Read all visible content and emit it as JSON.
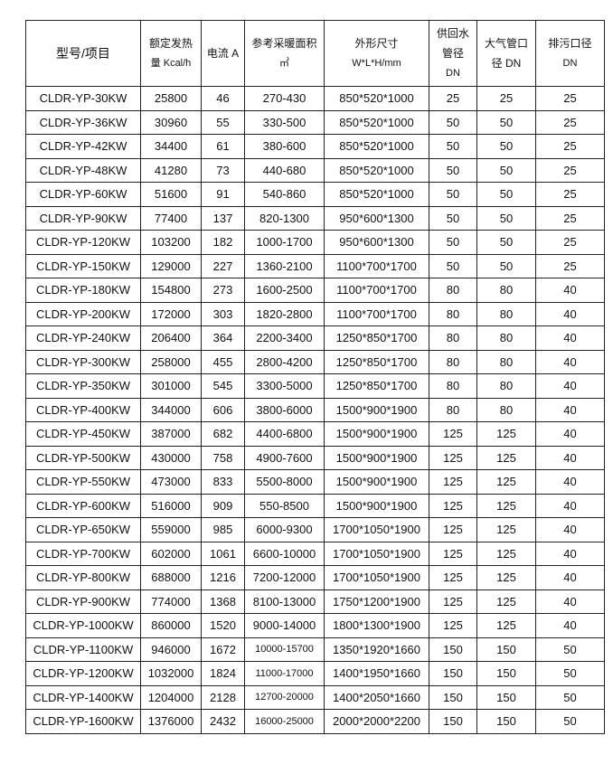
{
  "headers": [
    {
      "line1": "型号/项目",
      "line2": "",
      "line3": ""
    },
    {
      "line1": "额定发热",
      "line2": "量 Kcal/h",
      "line3": ""
    },
    {
      "line1": "电流 A",
      "line2": "",
      "line3": ""
    },
    {
      "line1": "参考采暖面积",
      "line2": "㎡",
      "line3": ""
    },
    {
      "line1": "外形尺寸",
      "line2": "W*L*H/mm",
      "line3": ""
    },
    {
      "line1": "供回水",
      "line2": "管径",
      "line3": "DN"
    },
    {
      "line1": "大气管口",
      "line2": "径 DN",
      "line3": ""
    },
    {
      "line1": "排污口径",
      "line2": "DN",
      "line3": ""
    }
  ],
  "rows": [
    [
      "CLDR-YP-30KW",
      "25800",
      "46",
      "270-430",
      "850*520*1000",
      "25",
      "25",
      "25"
    ],
    [
      "CLDR-YP-36KW",
      "30960",
      "55",
      "330-500",
      "850*520*1000",
      "50",
      "50",
      "25"
    ],
    [
      "CLDR-YP-42KW",
      "34400",
      "61",
      "380-600",
      "850*520*1000",
      "50",
      "50",
      "25"
    ],
    [
      "CLDR-YP-48KW",
      "41280",
      "73",
      "440-680",
      "850*520*1000",
      "50",
      "50",
      "25"
    ],
    [
      "CLDR-YP-60KW",
      "51600",
      "91",
      "540-860",
      "850*520*1000",
      "50",
      "50",
      "25"
    ],
    [
      "CLDR-YP-90KW",
      "77400",
      "137",
      "820-1300",
      "950*600*1300",
      "50",
      "50",
      "25"
    ],
    [
      "CLDR-YP-120KW",
      "103200",
      "182",
      "1000-1700",
      "950*600*1300",
      "50",
      "50",
      "25"
    ],
    [
      "CLDR-YP-150KW",
      "129000",
      "227",
      "1360-2100",
      "1100*700*1700",
      "50",
      "50",
      "25"
    ],
    [
      "CLDR-YP-180KW",
      "154800",
      "273",
      "1600-2500",
      "1100*700*1700",
      "80",
      "80",
      "40"
    ],
    [
      "CLDR-YP-200KW",
      "172000",
      "303",
      "1820-2800",
      "1100*700*1700",
      "80",
      "80",
      "40"
    ],
    [
      "CLDR-YP-240KW",
      "206400",
      "364",
      "2200-3400",
      "1250*850*1700",
      "80",
      "80",
      "40"
    ],
    [
      "CLDR-YP-300KW",
      "258000",
      "455",
      "2800-4200",
      "1250*850*1700",
      "80",
      "80",
      "40"
    ],
    [
      "CLDR-YP-350KW",
      "301000",
      "545",
      "3300-5000",
      "1250*850*1700",
      "80",
      "80",
      "40"
    ],
    [
      "CLDR-YP-400KW",
      "344000",
      "606",
      "3800-6000",
      "1500*900*1900",
      "80",
      "80",
      "40"
    ],
    [
      "CLDR-YP-450KW",
      "387000",
      "682",
      "4400-6800",
      "1500*900*1900",
      "125",
      "125",
      "40"
    ],
    [
      "CLDR-YP-500KW",
      "430000",
      "758",
      "4900-7600",
      "1500*900*1900",
      "125",
      "125",
      "40"
    ],
    [
      "CLDR-YP-550KW",
      "473000",
      "833",
      "5500-8000",
      "1500*900*1900",
      "125",
      "125",
      "40"
    ],
    [
      "CLDR-YP-600KW",
      "516000",
      "909",
      "550-8500",
      "1500*900*1900",
      "125",
      "125",
      "40"
    ],
    [
      "CLDR-YP-650KW",
      "559000",
      "985",
      "6000-9300",
      "1700*1050*1900",
      "125",
      "125",
      "40"
    ],
    [
      "CLDR-YP-700KW",
      "602000",
      "1061",
      "6600-10000",
      "1700*1050*1900",
      "125",
      "125",
      "40"
    ],
    [
      "CLDR-YP-800KW",
      "688000",
      "1216",
      "7200-12000",
      "1700*1050*1900",
      "125",
      "125",
      "40"
    ],
    [
      "CLDR-YP-900KW",
      "774000",
      "1368",
      "8100-13000",
      "1750*1200*1900",
      "125",
      "125",
      "40"
    ],
    [
      "CLDR-YP-1000KW",
      "860000",
      "1520",
      "9000-14000",
      "1800*1300*1900",
      "125",
      "125",
      "40"
    ],
    [
      "CLDR-YP-1100KW",
      "946000",
      "1672",
      "10000-15700",
      "1350*1920*1660",
      "150",
      "150",
      "50"
    ],
    [
      "CLDR-YP-1200KW",
      "1032000",
      "1824",
      "11000-17000",
      "1400*1950*1660",
      "150",
      "150",
      "50"
    ],
    [
      "CLDR-YP-1400KW",
      "1204000",
      "2128",
      "12700-20000",
      "1400*2050*1660",
      "150",
      "150",
      "50"
    ],
    [
      "CLDR-YP-1600KW",
      "1376000",
      "2432",
      "16000-25000",
      "2000*2000*2200",
      "150",
      "150",
      "50"
    ]
  ]
}
